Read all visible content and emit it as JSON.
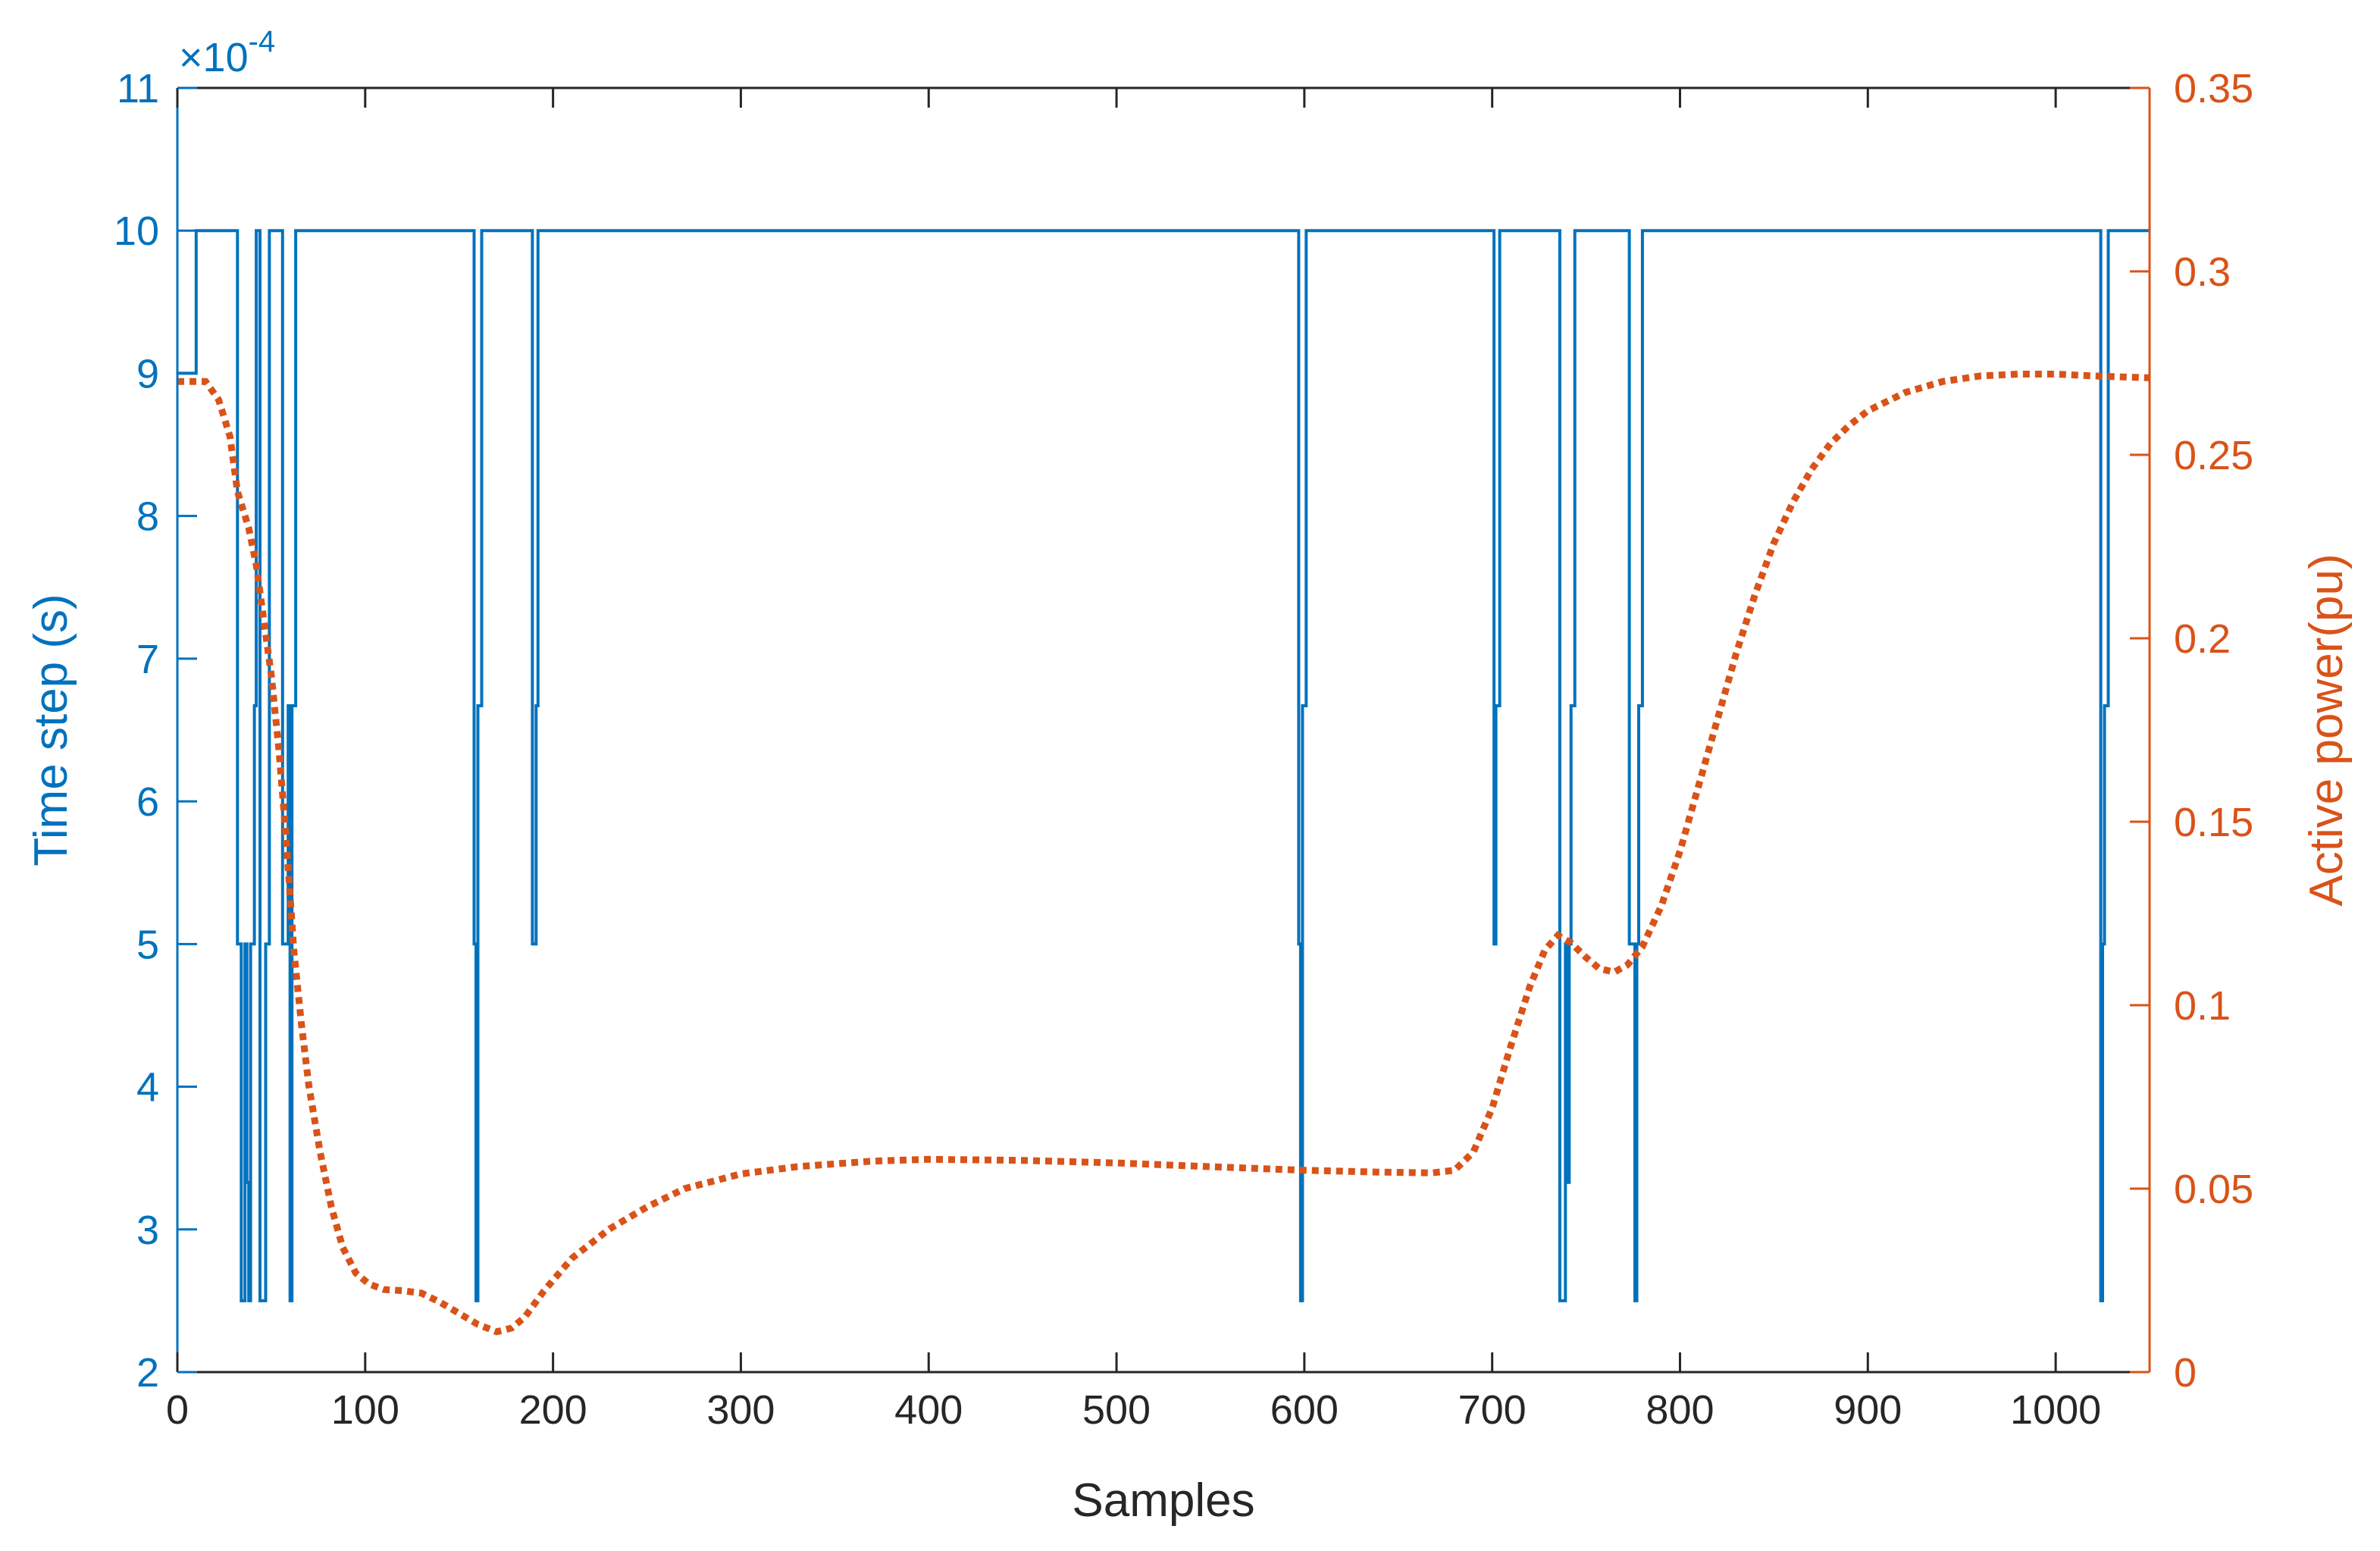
{
  "colors": {
    "left_axis": "#0072BD",
    "right_axis": "#D95319",
    "frame": "#262626",
    "background": "#ffffff"
  },
  "chart_data": {
    "type": "line",
    "xlabel": "Samples",
    "ylabel_left": "Time step (s)",
    "ylabel_right": "Active power(pu)",
    "exponent_label": "×10",
    "exponent_power": "-4",
    "xlim": [
      0,
      1050
    ],
    "ylim_left": [
      2,
      11
    ],
    "ylim_right": [
      0,
      0.35
    ],
    "x_ticks": [
      0,
      100,
      200,
      300,
      400,
      500,
      600,
      700,
      800,
      900,
      1000
    ],
    "y_left_ticks": [
      2,
      3,
      4,
      5,
      6,
      7,
      8,
      9,
      10,
      11
    ],
    "y_right_ticks": [
      0,
      0.05,
      0.1,
      0.15,
      0.2,
      0.25,
      0.3,
      0.35
    ],
    "y_right_tick_labels": [
      "0",
      "0.05",
      "0.1",
      "0.15",
      "0.2",
      "0.25",
      "0.3",
      "0.35"
    ],
    "grid": false,
    "series": [
      {
        "axis": "left",
        "style": "solid-stairs",
        "units_scale": "1e-4",
        "points": [
          [
            0,
            9
          ],
          [
            10,
            9
          ],
          [
            10,
            10
          ],
          [
            32,
            10
          ],
          [
            32,
            5
          ],
          [
            34,
            5
          ],
          [
            34,
            2.5
          ],
          [
            36,
            2.5
          ],
          [
            36,
            5
          ],
          [
            37,
            5
          ],
          [
            37,
            3.33
          ],
          [
            38,
            3.33
          ],
          [
            38,
            2.5
          ],
          [
            39,
            2.5
          ],
          [
            39,
            5
          ],
          [
            41,
            5
          ],
          [
            41,
            6.67
          ],
          [
            42,
            6.67
          ],
          [
            42,
            10
          ],
          [
            44,
            10
          ],
          [
            44,
            2.5
          ],
          [
            47,
            2.5
          ],
          [
            47,
            5
          ],
          [
            49,
            5
          ],
          [
            49,
            10
          ],
          [
            56,
            10
          ],
          [
            56,
            5
          ],
          [
            59,
            5
          ],
          [
            59,
            6.67
          ],
          [
            60,
            6.67
          ],
          [
            60,
            2.5
          ],
          [
            61,
            2.5
          ],
          [
            61,
            6.67
          ],
          [
            63,
            6.67
          ],
          [
            63,
            10
          ],
          [
            158,
            10
          ],
          [
            158,
            5
          ],
          [
            159,
            5
          ],
          [
            159,
            2.5
          ],
          [
            160,
            2.5
          ],
          [
            160,
            6.67
          ],
          [
            162,
            6.67
          ],
          [
            162,
            10
          ],
          [
            189,
            10
          ],
          [
            189,
            5
          ],
          [
            191,
            5
          ],
          [
            191,
            6.67
          ],
          [
            192,
            6.67
          ],
          [
            192,
            10
          ],
          [
            597,
            10
          ],
          [
            597,
            5
          ],
          [
            598,
            5
          ],
          [
            598,
            2.5
          ],
          [
            599,
            2.5
          ],
          [
            599,
            6.67
          ],
          [
            601,
            6.67
          ],
          [
            601,
            10
          ],
          [
            701,
            10
          ],
          [
            701,
            5
          ],
          [
            702,
            5
          ],
          [
            702,
            6.67
          ],
          [
            704,
            6.67
          ],
          [
            704,
            10
          ],
          [
            736,
            10
          ],
          [
            736,
            2.5
          ],
          [
            739,
            2.5
          ],
          [
            739,
            5
          ],
          [
            740,
            5
          ],
          [
            740,
            3.33
          ],
          [
            741,
            3.33
          ],
          [
            741,
            5
          ],
          [
            742,
            5
          ],
          [
            742,
            6.67
          ],
          [
            744,
            6.67
          ],
          [
            744,
            10
          ],
          [
            773,
            10
          ],
          [
            773,
            5
          ],
          [
            776,
            5
          ],
          [
            776,
            2.5
          ],
          [
            777,
            2.5
          ],
          [
            777,
            5
          ],
          [
            778,
            5
          ],
          [
            778,
            6.67
          ],
          [
            780,
            6.67
          ],
          [
            780,
            10
          ],
          [
            1024,
            10
          ],
          [
            1024,
            2.5
          ],
          [
            1025,
            2.5
          ],
          [
            1025,
            5
          ],
          [
            1026,
            5
          ],
          [
            1026,
            6.67
          ],
          [
            1028,
            6.67
          ],
          [
            1028,
            10
          ],
          [
            1050,
            10
          ]
        ]
      },
      {
        "axis": "right",
        "style": "dotted",
        "points": [
          [
            0,
            0.27
          ],
          [
            15,
            0.27
          ],
          [
            22,
            0.265
          ],
          [
            28,
            0.255
          ],
          [
            32,
            0.24
          ],
          [
            38,
            0.23
          ],
          [
            42,
            0.22
          ],
          [
            46,
            0.205
          ],
          [
            50,
            0.19
          ],
          [
            54,
            0.17
          ],
          [
            58,
            0.145
          ],
          [
            62,
            0.115
          ],
          [
            66,
            0.095
          ],
          [
            70,
            0.078
          ],
          [
            76,
            0.06
          ],
          [
            82,
            0.045
          ],
          [
            88,
            0.034
          ],
          [
            95,
            0.027
          ],
          [
            102,
            0.024
          ],
          [
            110,
            0.0225
          ],
          [
            120,
            0.0222
          ],
          [
            130,
            0.0215
          ],
          [
            140,
            0.019
          ],
          [
            150,
            0.016
          ],
          [
            160,
            0.013
          ],
          [
            170,
            0.011
          ],
          [
            178,
            0.012
          ],
          [
            185,
            0.015
          ],
          [
            195,
            0.022
          ],
          [
            210,
            0.031
          ],
          [
            230,
            0.039
          ],
          [
            250,
            0.045
          ],
          [
            270,
            0.05
          ],
          [
            300,
            0.054
          ],
          [
            330,
            0.056
          ],
          [
            370,
            0.0575
          ],
          [
            400,
            0.058
          ],
          [
            450,
            0.0577
          ],
          [
            500,
            0.057
          ],
          [
            550,
            0.056
          ],
          [
            600,
            0.055
          ],
          [
            640,
            0.0545
          ],
          [
            668,
            0.0543
          ],
          [
            680,
            0.055
          ],
          [
            690,
            0.06
          ],
          [
            700,
            0.072
          ],
          [
            710,
            0.089
          ],
          [
            720,
            0.105
          ],
          [
            728,
            0.115
          ],
          [
            735,
            0.119
          ],
          [
            742,
            0.117
          ],
          [
            750,
            0.113
          ],
          [
            757,
            0.11
          ],
          [
            765,
            0.109
          ],
          [
            772,
            0.111
          ],
          [
            780,
            0.116
          ],
          [
            790,
            0.127
          ],
          [
            800,
            0.142
          ],
          [
            810,
            0.16
          ],
          [
            820,
            0.178
          ],
          [
            830,
            0.196
          ],
          [
            840,
            0.212
          ],
          [
            850,
            0.226
          ],
          [
            860,
            0.237
          ],
          [
            870,
            0.246
          ],
          [
            880,
            0.253
          ],
          [
            890,
            0.258
          ],
          [
            900,
            0.262
          ],
          [
            920,
            0.267
          ],
          [
            940,
            0.27
          ],
          [
            960,
            0.2715
          ],
          [
            980,
            0.272
          ],
          [
            1000,
            0.272
          ],
          [
            1020,
            0.2715
          ],
          [
            1050,
            0.271
          ]
        ]
      }
    ]
  }
}
